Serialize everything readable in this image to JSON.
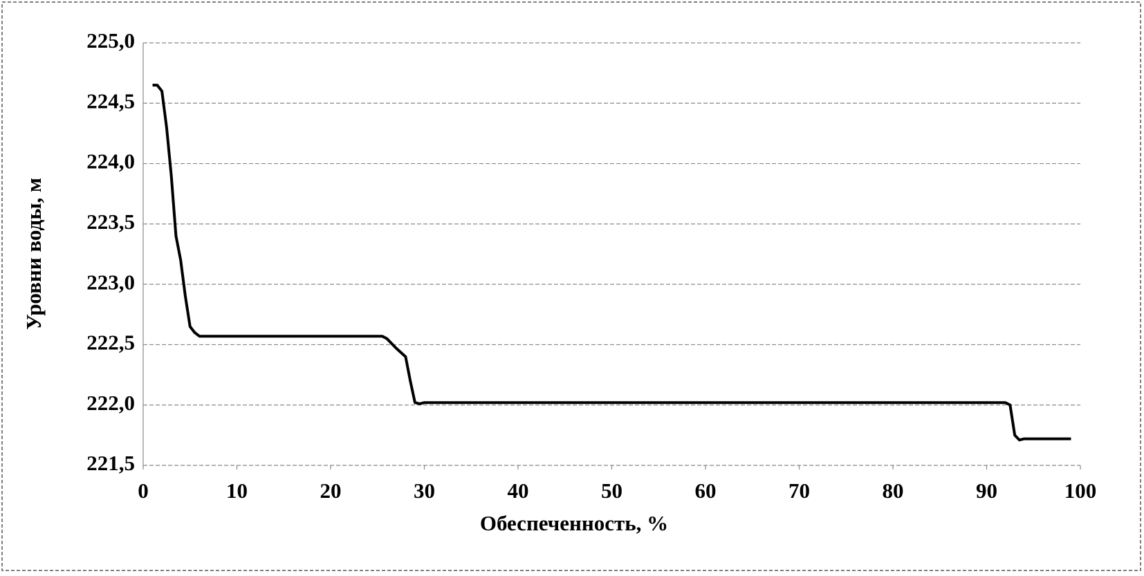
{
  "chart_data": {
    "type": "line",
    "x_label": "Обеспеченность, %",
    "y_label": "Уровни воды, м",
    "series": [
      {
        "color": "#000000",
        "x": [
          1,
          1.5,
          2,
          2.5,
          3,
          3.5,
          4,
          4.5,
          5,
          5.5,
          6,
          10,
          20,
          25.5,
          26,
          27,
          28,
          28.5,
          29,
          29.5,
          30,
          50,
          92,
          92.5,
          93,
          93.5,
          94,
          99
        ],
        "values": [
          224.65,
          224.65,
          224.6,
          224.3,
          223.9,
          223.4,
          223.2,
          222.9,
          222.65,
          222.6,
          222.57,
          222.57,
          222.57,
          222.57,
          222.55,
          222.47,
          222.4,
          222.2,
          222.02,
          222.01,
          222.02,
          222.02,
          222.02,
          222.0,
          221.75,
          221.71,
          221.72,
          221.72
        ]
      }
    ],
    "xlim": [
      0,
      100
    ],
    "xticks": [
      0,
      10,
      20,
      30,
      40,
      50,
      60,
      70,
      80,
      90,
      100
    ],
    "ylim": [
      221.5,
      225
    ],
    "yticks": [
      {
        "value": 221.5,
        "label": "221,5"
      },
      {
        "value": 222,
        "label": "222,0"
      },
      {
        "value": 222.5,
        "label": "222,5"
      },
      {
        "value": 223,
        "label": "223,0"
      },
      {
        "value": 223.5,
        "label": "223,5"
      },
      {
        "value": 224,
        "label": "224,0"
      },
      {
        "value": 224.5,
        "label": "224,5"
      },
      {
        "value": 225,
        "label": "225,0"
      }
    ],
    "grid": true
  }
}
